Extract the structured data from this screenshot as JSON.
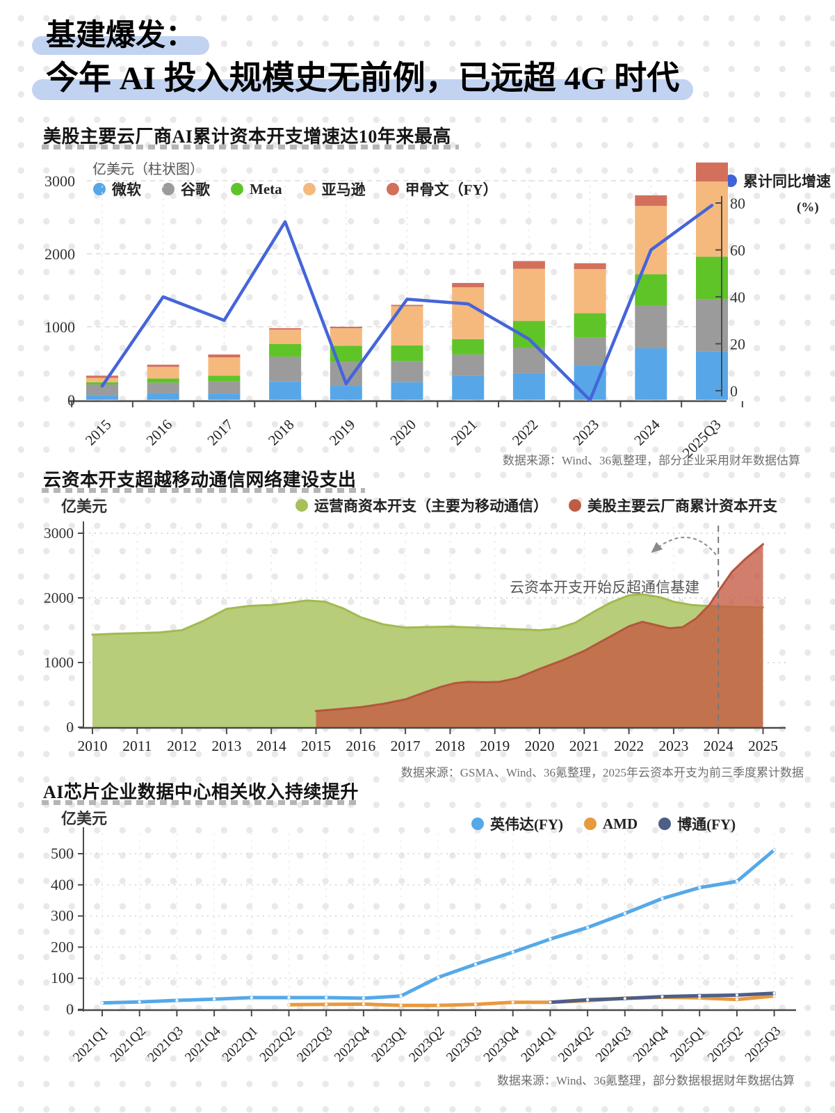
{
  "title": {
    "line1": "基建爆发：",
    "line2": "今年 AI 投入规模史无前例，已远超 4G 时代"
  },
  "sections": [
    {
      "heading": "美股主要云厂商AI累计资本开支增速达10年来最高",
      "unit": "亿美元（柱状图）",
      "source": "数据来源：Wind、36氪整理，部分企业采用财年数据估算"
    },
    {
      "heading": "云资本开支超越移动通信网络建设支出",
      "unit": "亿美元",
      "source": "数据来源：GSMA、Wind、36氪整理，2025年云资本开支为前三季度累计数据"
    },
    {
      "heading": "AI芯片企业数据中心相关收入持续提升",
      "unit": "亿美元",
      "source": "数据来源：Wind、36氪整理，部分数据根据财年数据估算"
    }
  ],
  "chart_data": [
    {
      "type": "bar",
      "title": "美股主要云厂商AI累计资本开支增速达10年来最高",
      "ylabel": "亿美元（柱状图）",
      "categories": [
        "2015",
        "2016",
        "2017",
        "2018",
        "2019",
        "2020",
        "2021",
        "2022",
        "2023",
        "2024",
        "2025Q3"
      ],
      "series": [
        {
          "name": "微软",
          "color": "#57a7e8",
          "values": [
            65,
            90,
            85,
            250,
            190,
            240,
            325,
            365,
            475,
            705,
            665
          ]
        },
        {
          "name": "谷歌",
          "color": "#9b9b9b",
          "values": [
            145,
            145,
            170,
            340,
            330,
            290,
            295,
            345,
            375,
            590,
            715
          ]
        },
        {
          "name": "Meta",
          "color": "#5fc428",
          "values": [
            30,
            55,
            75,
            175,
            220,
            215,
            210,
            370,
            335,
            425,
            580
          ]
        },
        {
          "name": "亚马逊",
          "color": "#f5b97e",
          "values": [
            60,
            160,
            250,
            195,
            240,
            537,
            710,
            715,
            605,
            935,
            1030
          ]
        },
        {
          "name": "甲骨文（FY）",
          "color": "#d2705c",
          "values": [
            30,
            30,
            40,
            20,
            20,
            18,
            60,
            105,
            80,
            145,
            260
          ]
        }
      ],
      "line_series": {
        "name": "累计同比增速",
        "unit": "(%)",
        "color": "#4565d8",
        "values": [
          2,
          40,
          30,
          72,
          3,
          39,
          37,
          22,
          -4,
          60,
          79
        ]
      },
      "left_axis_ticks": [
        0,
        1000,
        2000,
        3000
      ],
      "right_axis_ticks": [
        0,
        20,
        40,
        60,
        80
      ],
      "grid": true,
      "legend_position": "top"
    },
    {
      "type": "area",
      "title": "云资本开支超越移动通信网络建设支出",
      "ylabel": "亿美元",
      "x_ticks": [
        2010,
        2011,
        2012,
        2013,
        2014,
        2015,
        2016,
        2017,
        2018,
        2019,
        2020,
        2021,
        2022,
        2023,
        2024,
        2025
      ],
      "y_ticks": [
        0,
        1000,
        2000,
        3000
      ],
      "annotation": "云资本开支开始反超通信基建",
      "dashed_marker_year": 2024,
      "series": [
        {
          "name": "运营商资本开支（主要为移动通信）",
          "fill": "#b7cd79",
          "stroke": "#a2ba4f",
          "x": [
            2010,
            2010.5,
            2011,
            2011.5,
            2012,
            2012.5,
            2013,
            2013.5,
            2014,
            2014.4,
            2014.8,
            2015.2,
            2015.6,
            2016,
            2016.5,
            2017,
            2017.5,
            2018,
            2018.5,
            2019,
            2019.5,
            2020,
            2020.4,
            2020.8,
            2021.2,
            2021.6,
            2022,
            2022.3,
            2022.7,
            2023,
            2023.4,
            2023.8,
            2024.2,
            2024.6,
            2025
          ],
          "y": [
            1430,
            1445,
            1455,
            1465,
            1500,
            1650,
            1830,
            1875,
            1890,
            1920,
            1960,
            1940,
            1840,
            1700,
            1590,
            1540,
            1548,
            1555,
            1542,
            1530,
            1515,
            1500,
            1525,
            1615,
            1780,
            1930,
            2040,
            2055,
            2010,
            1940,
            1890,
            1872,
            1865,
            1858,
            1852
          ]
        },
        {
          "name": "美股主要云厂商累计资本开支",
          "fill": "rgba(197,90,67,0.78)",
          "stroke": "#b4563e",
          "x": [
            2015,
            2015.5,
            2016,
            2016.5,
            2017,
            2017.4,
            2017.8,
            2018.1,
            2018.4,
            2018.8,
            2019.1,
            2019.5,
            2020,
            2020.5,
            2021,
            2021.5,
            2022,
            2022.3,
            2022.6,
            2022.9,
            2023.2,
            2023.5,
            2023.8,
            2024,
            2024.3,
            2024.6,
            2025
          ],
          "y": [
            250,
            278,
            310,
            360,
            430,
            530,
            625,
            680,
            700,
            695,
            700,
            760,
            900,
            1030,
            1180,
            1370,
            1560,
            1630,
            1580,
            1530,
            1545,
            1680,
            1890,
            2100,
            2400,
            2600,
            2830
          ]
        }
      ]
    },
    {
      "type": "line",
      "title": "AI芯片企业数据中心相关收入持续提升",
      "ylabel": "亿美元",
      "categories": [
        "2021Q1",
        "2021Q2",
        "2021Q3",
        "2021Q4",
        "2022Q1",
        "2022Q2",
        "2022Q3",
        "2022Q4",
        "2023Q1",
        "2023Q2",
        "2023Q3",
        "2023Q4",
        "2024Q1",
        "2024Q2",
        "2024Q3",
        "2024Q4",
        "2025Q1",
        "2025Q2",
        "2025Q3"
      ],
      "y_ticks": [
        0,
        100,
        200,
        300,
        400,
        500
      ],
      "series": [
        {
          "name": "英伟达(FY)",
          "color": "#55a9e8",
          "values": [
            21,
            24,
            29,
            33,
            38,
            38,
            38,
            36,
            43,
            103,
            145,
            184,
            226,
            263,
            308,
            356,
            391,
            411,
            512
          ]
        },
        {
          "name": "AMD",
          "color": "#e89a3e",
          "values": [
            null,
            null,
            null,
            null,
            null,
            15,
            16,
            17,
            13,
            13,
            16,
            23,
            23,
            28,
            36,
            39,
            37,
            32,
            43
          ]
        },
        {
          "name": "博通(FY)",
          "color": "#4c5f88",
          "values": [
            null,
            null,
            null,
            null,
            null,
            null,
            null,
            null,
            null,
            null,
            null,
            null,
            23,
            31,
            35,
            41,
            44,
            46,
            52
          ]
        }
      ]
    }
  ]
}
